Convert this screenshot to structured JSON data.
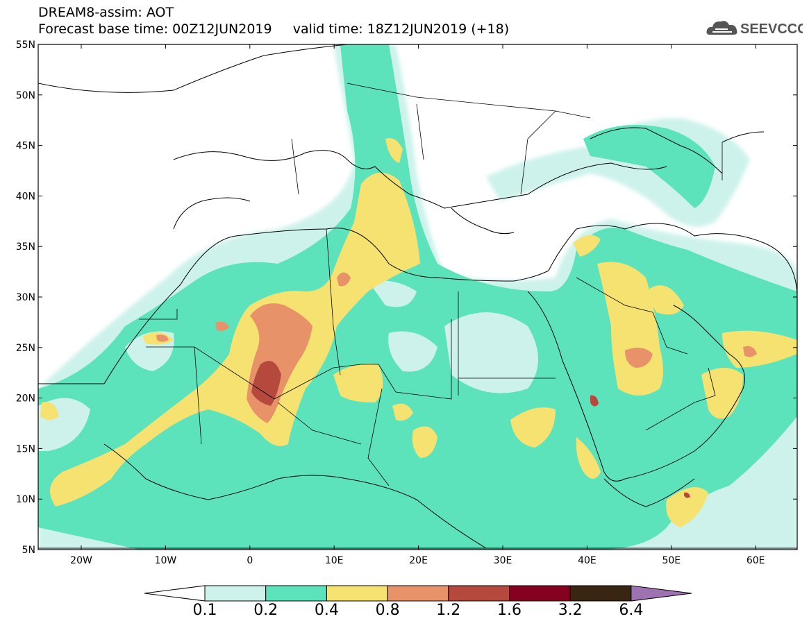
{
  "header": {
    "title": "DREAM8-assim: AOT",
    "base_time_label": "Forecast base time: 00Z12JUN2019",
    "valid_time_label": "valid time: 18Z12JUN2019 (+18)"
  },
  "logo": {
    "text": "SEEVCCC",
    "icon": "cloud-icon"
  },
  "map": {
    "lat_labels": [
      "55N",
      "50N",
      "45N",
      "40N",
      "35N",
      "30N",
      "25N",
      "20N",
      "15N",
      "10N",
      "5N"
    ],
    "lon_labels": [
      "20W",
      "10W",
      "0",
      "10E",
      "20E",
      "30E",
      "40E",
      "50E",
      "60E"
    ]
  },
  "colorbar": {
    "labels": [
      "0.1",
      "0.2",
      "0.4",
      "0.8",
      "1.2",
      "1.6",
      "3.2",
      "6.4"
    ],
    "colors": [
      "#cdf2ec",
      "#5de3bb",
      "#f6e271",
      "#e8926a",
      "#b5493d",
      "#860020",
      "#3a2513",
      "#9e72b0"
    ]
  }
}
